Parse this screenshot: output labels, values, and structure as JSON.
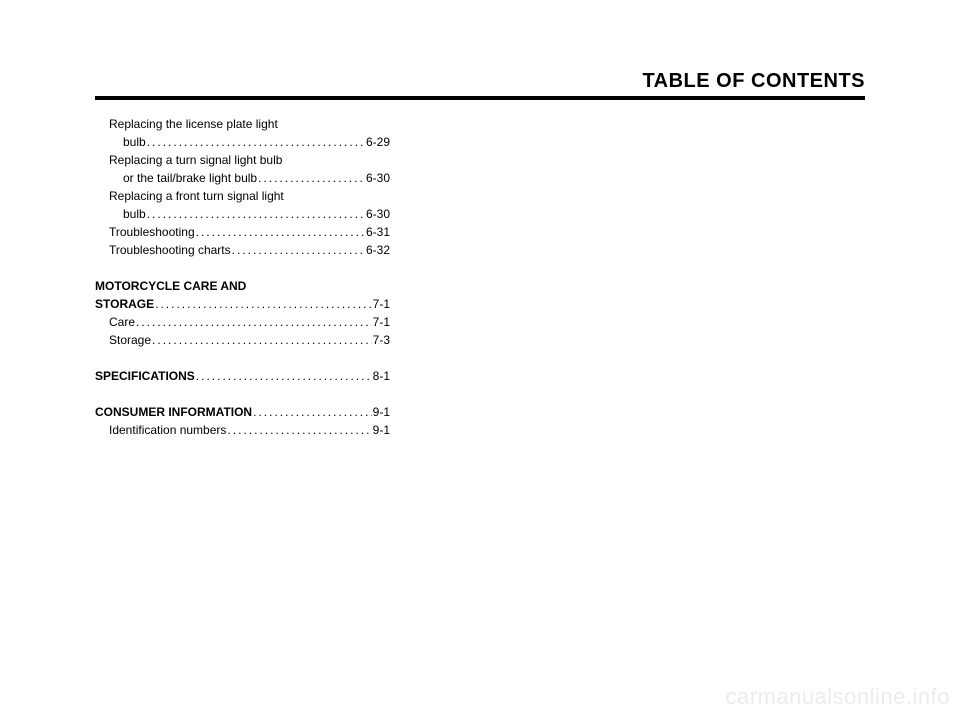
{
  "header": {
    "title": "TABLE OF CONTENTS"
  },
  "toc": {
    "items": [
      {
        "label": "Replacing the license plate light",
        "indent": 1,
        "page": null,
        "wrap": true
      },
      {
        "label": "bulb",
        "indent": 2,
        "page": "6-29"
      },
      {
        "label": "Replacing a turn signal light bulb",
        "indent": 1,
        "page": null,
        "wrap": true
      },
      {
        "label": "or the tail/brake light bulb",
        "indent": 2,
        "page": "6-30"
      },
      {
        "label": "Replacing a front turn signal light",
        "indent": 1,
        "page": null,
        "wrap": true
      },
      {
        "label": "bulb",
        "indent": 2,
        "page": "6-30"
      },
      {
        "label": "Troubleshooting",
        "indent": 1,
        "page": "6-31"
      },
      {
        "label": "Troubleshooting charts",
        "indent": 1,
        "page": "6-32"
      },
      {
        "gap": true
      },
      {
        "label": "MOTORCYCLE CARE AND",
        "indent": 0,
        "bold": true,
        "page": null,
        "wrap": true
      },
      {
        "label": "STORAGE",
        "indent": 0,
        "bold": true,
        "page": "7-1"
      },
      {
        "label": "Care",
        "indent": 1,
        "page": "7-1"
      },
      {
        "label": "Storage",
        "indent": 1,
        "page": "7-3"
      },
      {
        "gap": true
      },
      {
        "label": "SPECIFICATIONS",
        "indent": 0,
        "bold": true,
        "page": "8-1"
      },
      {
        "gap": true
      },
      {
        "label": "CONSUMER INFORMATION",
        "indent": 0,
        "bold": true,
        "page": "9-1"
      },
      {
        "label": "Identification numbers",
        "indent": 1,
        "page": "9-1"
      }
    ]
  },
  "watermark": "carmanualsonline.info"
}
